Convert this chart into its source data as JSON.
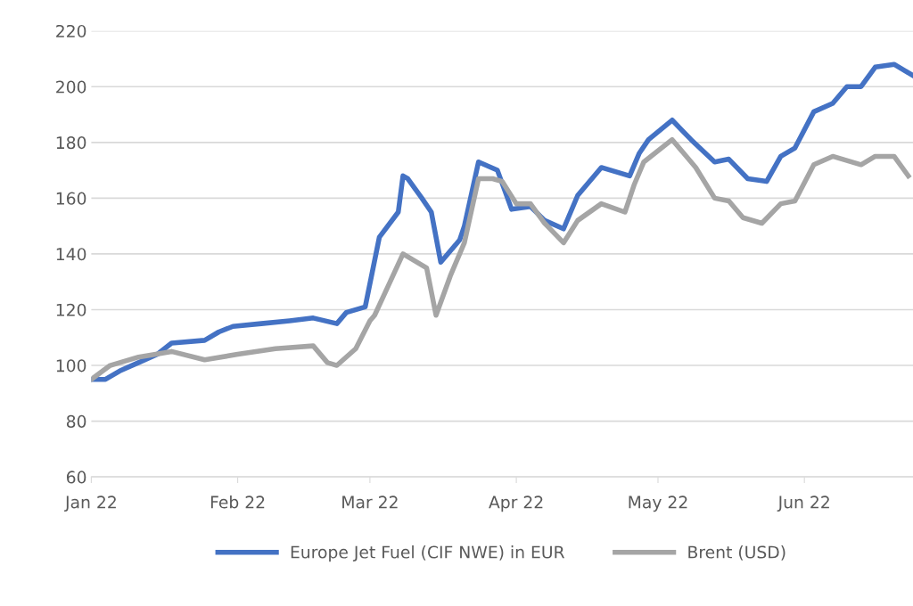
{
  "chart_data": {
    "type": "line",
    "x": [
      "2022-01-01",
      "2022-01-04",
      "2022-01-07",
      "2022-01-11",
      "2022-01-15",
      "2022-01-18",
      "2022-01-25",
      "2022-01-28",
      "2022-01-31",
      "2022-02-06",
      "2022-02-12",
      "2022-02-17",
      "2022-02-22",
      "2022-02-24",
      "2022-02-28",
      "2022-03-03",
      "2022-03-07",
      "2022-03-08",
      "2022-03-09",
      "2022-03-12",
      "2022-03-14",
      "2022-03-16",
      "2022-03-20",
      "2022-03-21",
      "2022-03-24",
      "2022-03-28",
      "2022-03-31",
      "2022-04-04",
      "2022-04-07",
      "2022-04-11",
      "2022-04-14",
      "2022-04-19",
      "2022-04-25",
      "2022-04-27",
      "2022-04-29",
      "2022-05-04",
      "2022-05-08",
      "2022-05-13",
      "2022-05-16",
      "2022-05-20",
      "2022-05-24",
      "2022-05-27",
      "2022-05-30",
      "2022-06-03",
      "2022-06-07",
      "2022-06-10",
      "2022-06-13",
      "2022-06-16",
      "2022-06-20",
      "2022-06-24"
    ],
    "series": [
      {
        "name": "Europe Jet Fuel (CIF NWE) in EUR",
        "color": "#4472c4",
        "values": [
          95,
          95,
          98,
          101,
          104,
          108,
          109,
          112,
          114,
          115,
          116,
          117,
          115,
          119,
          121,
          146,
          155,
          168,
          167,
          160,
          155,
          137,
          145,
          150,
          173,
          170,
          156,
          157,
          152,
          149,
          161,
          171,
          168,
          176,
          181,
          188,
          181,
          173,
          174,
          167,
          166,
          175,
          178,
          191,
          194,
          200,
          200,
          207,
          208,
          204
        ]
      },
      {
        "name": "Brent (USD)",
        "color": "#a5a5a5",
        "x": [
          "2022-01-01",
          "2022-01-05",
          "2022-01-11",
          "2022-01-18",
          "2022-01-25",
          "2022-02-01",
          "2022-02-09",
          "2022-02-17",
          "2022-02-20",
          "2022-02-22",
          "2022-02-26",
          "2022-03-01",
          "2022-03-02",
          "2022-03-05",
          "2022-03-08",
          "2022-03-13",
          "2022-03-15",
          "2022-03-18",
          "2022-03-21",
          "2022-03-24",
          "2022-03-27",
          "2022-03-29",
          "2022-04-01",
          "2022-04-04",
          "2022-04-07",
          "2022-04-11",
          "2022-04-14",
          "2022-04-19",
          "2022-04-24",
          "2022-04-26",
          "2022-04-28",
          "2022-05-04",
          "2022-05-09",
          "2022-05-13",
          "2022-05-16",
          "2022-05-19",
          "2022-05-23",
          "2022-05-27",
          "2022-05-30",
          "2022-06-03",
          "2022-06-07",
          "2022-06-13",
          "2022-06-16",
          "2022-06-20",
          "2022-06-23"
        ],
        "values": [
          95,
          100,
          103,
          105,
          102,
          104,
          106,
          107,
          101,
          100,
          106,
          116,
          118,
          129,
          140,
          135,
          118,
          132,
          144,
          167,
          167,
          166,
          158,
          158,
          151,
          144,
          152,
          158,
          155,
          165,
          173,
          181,
          171,
          160,
          159,
          153,
          151,
          158,
          159,
          172,
          175,
          172,
          175,
          175,
          168
        ]
      }
    ],
    "xlim": [
      "2022-01-01",
      "2022-06-24"
    ],
    "xticks": [
      {
        "value": "2022-01-01",
        "label": "Jan 22"
      },
      {
        "value": "2022-02-01",
        "label": "Feb 22"
      },
      {
        "value": "2022-03-01",
        "label": "Mar 22"
      },
      {
        "value": "2022-04-01",
        "label": "Apr 22"
      },
      {
        "value": "2022-05-01",
        "label": "May 22"
      },
      {
        "value": "2022-06-01",
        "label": "Jun 22"
      }
    ],
    "ylim": [
      60,
      220
    ],
    "yticks": [
      60,
      80,
      100,
      120,
      140,
      160,
      180,
      200,
      220
    ],
    "grid": "y",
    "legend": "bottom",
    "line_style": "solid",
    "marker": "none"
  }
}
